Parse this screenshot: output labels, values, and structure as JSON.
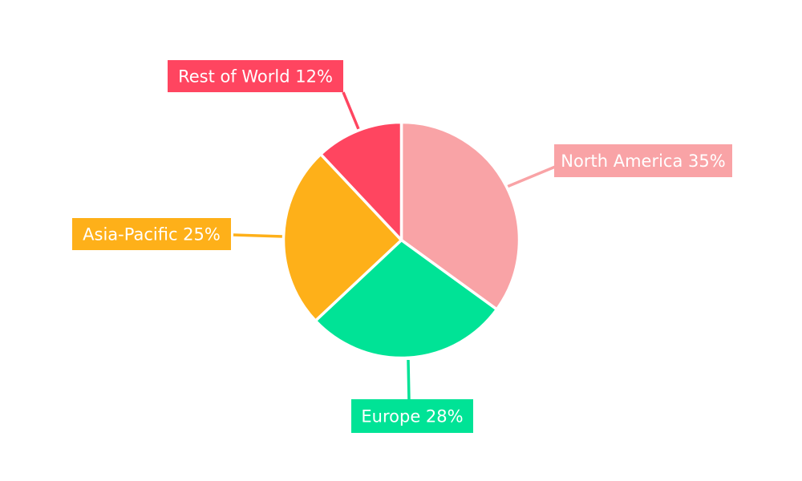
{
  "page": {
    "background_color": "#ffffff"
  },
  "chart_data": {
    "type": "pie",
    "title": "",
    "categories": [
      "North America",
      "Europe",
      "Asia-Pacific",
      "Rest of World"
    ],
    "values": [
      35,
      28,
      25,
      12
    ],
    "total": 100,
    "start_angle_deg": 0,
    "direction": "clockwise",
    "slice_gap_color": "#ffffff",
    "legend_position": "none",
    "label_style": {
      "text_color": "#ffffff",
      "box_background": "matches-slice-color"
    },
    "slices": [
      {
        "label": "North America",
        "value": 35,
        "percent_text": "35%",
        "label_text": "North America 35%",
        "color": "#F9A3A6"
      },
      {
        "label": "Europe",
        "value": 28,
        "percent_text": "28%",
        "label_text": "Europe 28%",
        "color": "#00E396"
      },
      {
        "label": "Asia-Pacific",
        "value": 25,
        "percent_text": "25%",
        "label_text": "Asia-Pacific 25%",
        "color": "#FEB019"
      },
      {
        "label": "Rest of World",
        "value": 12,
        "percent_text": "12%",
        "label_text": "Rest of World 12%",
        "color": "#FF4560"
      }
    ]
  }
}
